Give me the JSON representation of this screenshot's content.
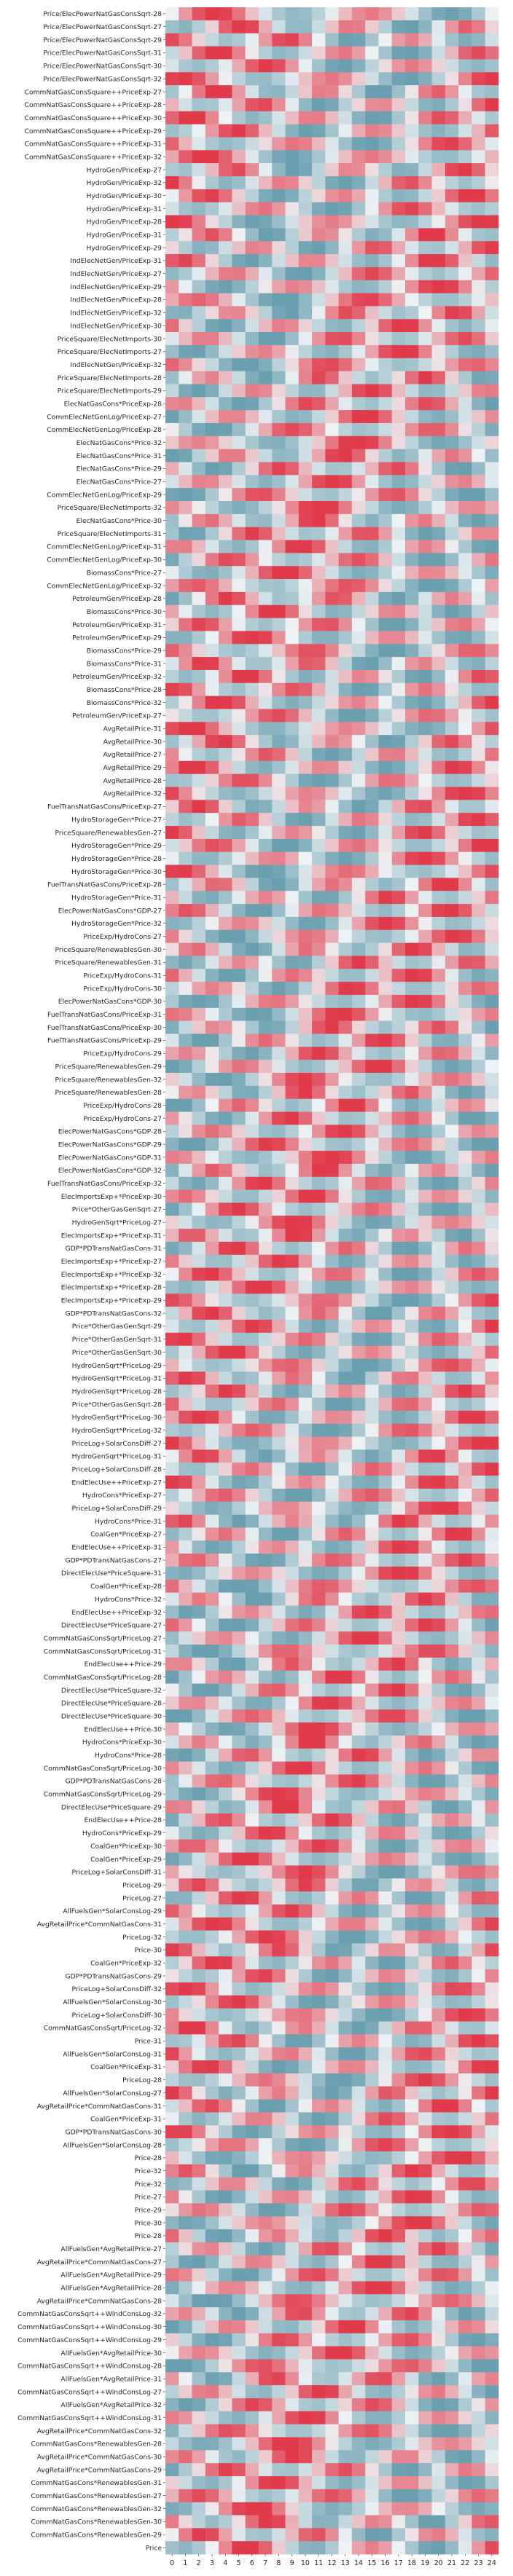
{
  "chart_data": {
    "type": "heatmap",
    "title": "",
    "xlabel": "",
    "ylabel": "",
    "colormap": {
      "low": "#6a9fb0",
      "mid": "#eef2f4",
      "high": "#e03a4b",
      "vmin": -1,
      "vmax": 1
    },
    "x_categories": [
      "0",
      "1",
      "2",
      "3",
      "4",
      "5",
      "6",
      "7",
      "8",
      "9",
      "10",
      "11",
      "12",
      "13",
      "14",
      "15",
      "16",
      "17",
      "18",
      "19",
      "20",
      "21",
      "22",
      "23",
      "24"
    ],
    "y_categories": [
      "Price/ElecPowerNatGasConsSqrt-28",
      "Price/ElecPowerNatGasConsSqrt-27",
      "Price/ElecPowerNatGasConsSqrt-29",
      "Price/ElecPowerNatGasConsSqrt-31",
      "Price/ElecPowerNatGasConsSqrt-30",
      "Price/ElecPowerNatGasConsSqrt-32",
      "CommNatGasConsSquare++PriceExp-27",
      "CommNatGasConsSquare++PriceExp-28",
      "CommNatGasConsSquare++PriceExp-30",
      "CommNatGasConsSquare++PriceExp-29",
      "CommNatGasConsSquare++PriceExp-31",
      "CommNatGasConsSquare++PriceExp-32",
      "HydroGen/PriceExp-27",
      "HydroGen/PriceExp-32",
      "HydroGen/PriceExp-30",
      "HydroGen/PriceExp-31",
      "HydroGen/PriceExp-28",
      "HydroGen/PriceExp-31",
      "HydroGen/PriceExp-29",
      "IndElecNetGen/PriceExp-31",
      "IndElecNetGen/PriceExp-27",
      "IndElecNetGen/PriceExp-29",
      "IndElecNetGen/PriceExp-28",
      "IndElecNetGen/PriceExp-32",
      "IndElecNetGen/PriceExp-30",
      "PriceSquare/ElecNetImports-30",
      "PriceSquare/ElecNetImports-27",
      "IndElecNetGen/PriceExp-32",
      "PriceSquare/ElecNetImports-28",
      "PriceSquare/ElecNetImports-29",
      "ElecNatGasCons*PriceExp-28",
      "CommElecNetGenLog/PriceExp-27",
      "CommElecNetGenLog/PriceExp-28",
      "ElecNatGasCons*Price-32",
      "ElecNatGasCons*Price-31",
      "ElecNatGasCons*Price-29",
      "ElecNatGasCons*Price-27",
      "CommElecNetGenLog/PriceExp-29",
      "PriceSquare/ElecNetImports-32",
      "ElecNatGasCons*Price-30",
      "PriceSquare/ElecNetImports-31",
      "CommElecNetGenLog/PriceExp-31",
      "CommElecNetGenLog/PriceExp-30",
      "BiomassCons*Price-27",
      "CommElecNetGenLog/PriceExp-32",
      "PetroleumGen/PriceExp-28",
      "BiomassCons*Price-30",
      "PetroleumGen/PriceExp-31",
      "PetroleumGen/PriceExp-29",
      "BiomassCons*Price-29",
      "BiomassCons*Price-31",
      "PetroleumGen/PriceExp-32",
      "BiomassCons*Price-28",
      "BiomassCons*Price-32",
      "PetroleumGen/PriceExp-27",
      "AvgRetailPrice-31",
      "AvgRetailPrice-30",
      "AvgRetailPrice-27",
      "AvgRetailPrice-29",
      "AvgRetailPrice-28",
      "AvgRetailPrice-32",
      "FuelTransNatGasCons/PriceExp-27",
      "HydroStorageGen*Price-27",
      "PriceSquare/RenewablesGen-27",
      "HydroStorageGen*Price-29",
      "HydroStorageGen*Price-28",
      "HydroStorageGen*Price-30",
      "FuelTransNatGasCons/PriceExp-28",
      "HydroStorageGen*Price-31",
      "ElecPowerNatGasCons*GDP-27",
      "HydroStorageGen*Price-32",
      "PriceExp/HydroCons-27",
      "PriceSquare/RenewablesGen-30",
      "PriceSquare/RenewablesGen-31",
      "PriceExp/HydroCons-31",
      "PriceExp/HydroCons-30",
      "ElecPowerNatGasCons*GDP-30",
      "FuelTransNatGasCons/PriceExp-31",
      "FuelTransNatGasCons/PriceExp-30",
      "FuelTransNatGasCons/PriceExp-29",
      "PriceExp/HydroCons-29",
      "PriceSquare/RenewablesGen-29",
      "PriceSquare/RenewablesGen-32",
      "PriceSquare/RenewablesGen-28",
      "PriceExp/HydroCons-28",
      "PriceExp/HydroCons-27",
      "ElecPowerNatGasCons*GDP-28",
      "ElecPowerNatGasCons*GDP-29",
      "ElecPowerNatGasCons*GDP-31",
      "ElecPowerNatGasCons*GDP-32",
      "FuelTransNatGasCons/PriceExp-32",
      "ElecImportsExp+*PriceExp-30",
      "Price*OtherGasGenSqrt-27",
      "HydroGenSqrt*PriceLog-27",
      "ElecImportsExp+*PriceExp-31",
      "GDP*PDTransNatGasCons-31",
      "ElecImportsExp+*PriceExp-27",
      "ElecImportsExp+*PriceExp-32",
      "ElecImportsExp+*PriceExp-28",
      "ElecImportsExp+*PriceExp-29",
      "GDP*PDTransNatGasCons-32",
      "Price*OtherGasGenSqrt-29",
      "Price*OtherGasGenSqrt-31",
      "Price*OtherGasGenSqrt-30",
      "HydroGenSqrt*PriceLog-29",
      "HydroGenSqrt*PriceLog-31",
      "HydroGenSqrt*PriceLog-28",
      "Price*OtherGasGenSqrt-28",
      "HydroGenSqrt*PriceLog-30",
      "HydroGenSqrt*PriceLog-32",
      "PriceLog+SolarConsDiff-27",
      "HydroGenSqrt*PriceLog-31",
      "PriceLog+SolarConsDiff-28",
      "EndElecUse++PriceExp-27",
      "HydroCons*PriceExp-27",
      "PriceLog+SolarConsDiff-29",
      "HydroCons*Price-31",
      "CoalGen*PriceExp-27",
      "EndElecUse++PriceExp-31",
      "GDP*PDTransNatGasCons-27",
      "DirectElecUse*PriceSquare-31",
      "CoalGen*PriceExp-28",
      "HydroCons*Price-32",
      "EndElecUse++PriceExp-32",
      "DirectElecUse*PriceSquare-27",
      "CommNatGasConsSqrt/PriceLog-27",
      "CommNatGasConsSqrt/PriceLog-31",
      "EndElecUse++Price-29",
      "CommNatGasConsSqrt/PriceLog-28",
      "DirectElecUse*PriceSquare-32",
      "DirectElecUse*PriceSquare-28",
      "DirectElecUse*PriceSquare-30",
      "EndElecUse++Price-30",
      "HydroCons*PriceExp-30",
      "HydroCons*Price-28",
      "CommNatGasConsSqrt/PriceLog-30",
      "GDP*PDTransNatGasCons-28",
      "CommNatGasConsSqrt/PriceLog-29",
      "DirectElecUse*PriceSquare-29",
      "EndElecUse++Price-28",
      "HydroCons*PriceExp-29",
      "CoalGen*PriceExp-30",
      "CoalGen*PriceExp-29",
      "PriceLog+SolarConsDiff-31",
      "PriceLog-29",
      "PriceLog-27",
      "AllFuelsGen*SolarConsLog-29",
      "AvgRetailPrice*CommNatGasCons-31",
      "PriceLog-32",
      "Price-30",
      "CoalGen*PriceExp-32",
      "GDP*PDTransNatGasCons-29",
      "PriceLog+SolarConsDiff-32",
      "AllFuelsGen*SolarConsLog-30",
      "PriceLog+SolarConsDiff-30",
      "CommNatGasConsSqrt/PriceLog-32",
      "Price-31",
      "AllFuelsGen*SolarConsLog-31",
      "CoalGen*PriceExp-31",
      "PriceLog-28",
      "AllFuelsGen*SolarConsLog-27",
      "AvgRetailPrice*CommNatGasCons-31",
      "CoalGen*PriceExp-31",
      "GDP*PDTransNatGasCons-30",
      "AllFuelsGen*SolarConsLog-28",
      "Price-28",
      "Price-32",
      "Price-32",
      "Price-27",
      "Price-29",
      "Price-30",
      "Price-28",
      "AllFuelsGen*AvgRetailPrice-27",
      "AvgRetailPrice*CommNatGasCons-27",
      "AllFuelsGen*AvgRetailPrice-29",
      "AllFuelsGen*AvgRetailPrice-28",
      "AvgRetailPrice*CommNatGasCons-28",
      "CommNatGasConsSqrt++WindConsLog-32",
      "CommNatGasConsSqrt++WindConsLog-30",
      "CommNatGasConsSqrt++WindConsLog-29",
      "AllFuelsGen*AvgRetailPrice-30",
      "CommNatGasConsSqrt++WindConsLog-28",
      "AllFuelsGen*AvgRetailPrice-31",
      "CommNatGasConsSqrt++WindConsLog-27",
      "AllFuelsGen*AvgRetailPrice-32",
      "CommNatGasConsSqrt++WindConsLog-31",
      "AvgRetailPrice*CommNatGasCons-32",
      "CommNatGasCons*RenewablesGen-28",
      "AvgRetailPrice*CommNatGasCons-30",
      "AvgRetailPrice*CommNatGasCons-29",
      "CommNatGasCons*RenewablesGen-31",
      "CommNatGasCons*RenewablesGen-27",
      "CommNatGasCons*RenewablesGen-32",
      "CommNatGasCons*RenewablesGen-30",
      "CommNatGasCons*RenewablesGen-29",
      "Price"
    ],
    "value_range": [
      -1,
      1
    ],
    "grid": false,
    "legend": "none",
    "values_note_omitted": false
  }
}
